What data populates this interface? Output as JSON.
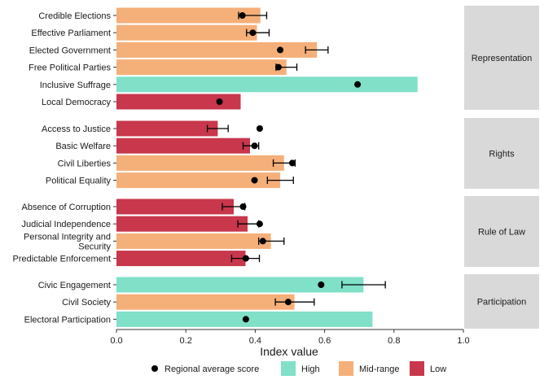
{
  "chart_data": {
    "type": "bar",
    "orientation": "horizontal",
    "xlabel": "Index value",
    "xlim": [
      0,
      1.0
    ],
    "xticks": [
      "0.0",
      "0.2",
      "0.4",
      "0.6",
      "0.8",
      "1.0"
    ],
    "xtick_values": [
      0,
      0.2,
      0.4,
      0.6,
      0.8,
      1.0
    ],
    "grid": false,
    "legend_position": "bottom",
    "legend": {
      "point_label": "Regional average score",
      "categories": [
        {
          "key": "high",
          "label": "High",
          "color": "#80E0C8"
        },
        {
          "key": "mid",
          "label": "Mid-range",
          "color": "#F5AF78"
        },
        {
          "key": "low",
          "label": "Low",
          "color": "#C8374C"
        }
      ]
    },
    "panels": [
      {
        "name": "Representation",
        "bars": [
          {
            "label": "Credible Elections",
            "value": 0.415,
            "category": "mid",
            "avg": 0.363,
            "err": [
              0.352,
              0.433
            ]
          },
          {
            "label": "Effective Parliament",
            "value": 0.405,
            "category": "mid",
            "avg": 0.393,
            "err": [
              0.375,
              0.44
            ]
          },
          {
            "label": "Elected Government",
            "value": 0.578,
            "category": "mid",
            "avg": 0.472,
            "err": [
              0.545,
              0.61
            ]
          },
          {
            "label": "Free Political Parties",
            "value": 0.49,
            "category": "mid",
            "avg": 0.467,
            "err": [
              0.46,
              0.52
            ]
          },
          {
            "label": "Inclusive Suffrage",
            "value": 0.868,
            "category": "high",
            "avg": 0.695,
            "err": null
          },
          {
            "label": "Local Democracy",
            "value": 0.358,
            "category": "low",
            "avg": 0.297,
            "err": null
          }
        ]
      },
      {
        "name": "Rights",
        "bars": [
          {
            "label": "Access to Justice",
            "value": 0.292,
            "category": "low",
            "avg": 0.413,
            "err": [
              0.262,
              0.322
            ]
          },
          {
            "label": "Basic Welfare",
            "value": 0.385,
            "category": "low",
            "avg": 0.398,
            "err": [
              0.365,
              0.41
            ]
          },
          {
            "label": "Civil Liberties",
            "value": 0.483,
            "category": "mid",
            "avg": 0.507,
            "err": [
              0.452,
              0.515
            ]
          },
          {
            "label": "Political Equality",
            "value": 0.472,
            "category": "mid",
            "avg": 0.398,
            "err": [
              0.435,
              0.51
            ]
          }
        ]
      },
      {
        "name": "Rule of Law",
        "bars": [
          {
            "label": "Absence of Corruption",
            "value": 0.338,
            "category": "low",
            "avg": 0.365,
            "err": [
              0.305,
              0.37
            ]
          },
          {
            "label": "Judicial Independence",
            "value": 0.378,
            "category": "low",
            "avg": 0.413,
            "err": [
              0.35,
              0.41
            ]
          },
          {
            "label": "Personal Integrity and\nSecurity",
            "value": 0.445,
            "category": "mid",
            "avg": 0.422,
            "err": [
              0.41,
              0.483
            ]
          },
          {
            "label": "Predictable Enforcement",
            "value": 0.372,
            "category": "low",
            "avg": 0.373,
            "err": [
              0.332,
              0.412
            ]
          }
        ]
      },
      {
        "name": "Participation",
        "bars": [
          {
            "label": "Civic Engagement",
            "value": 0.712,
            "category": "high",
            "avg": 0.59,
            "err": [
              0.65,
              0.775
            ]
          },
          {
            "label": "Civil Society",
            "value": 0.513,
            "category": "mid",
            "avg": 0.495,
            "err": [
              0.458,
              0.57
            ]
          },
          {
            "label": "Electoral Participation",
            "value": 0.738,
            "category": "high",
            "avg": 0.373,
            "err": null
          }
        ]
      }
    ]
  }
}
